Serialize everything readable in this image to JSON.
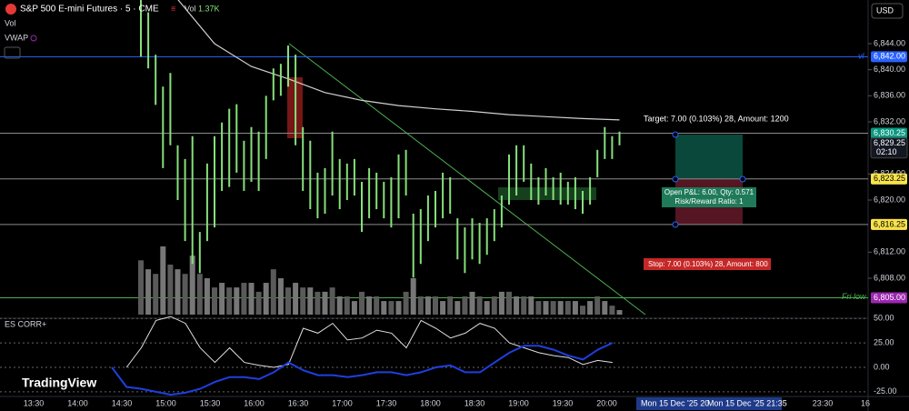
{
  "header": {
    "symbol": "S&P 500 E-mini Futures · 5 · CME",
    "vol_label": "Vol",
    "vol_value": "1.37K",
    "vwap_label": "VWAP",
    "currency": "USD"
  },
  "price_axis": {
    "ylim": [
      6802,
      6852
    ],
    "yticks": [
      {
        "value": 6844,
        "label": "6,844.00"
      },
      {
        "value": 6840,
        "label": "6,840.00"
      },
      {
        "value": 6836,
        "label": "6,836.00"
      },
      {
        "value": 6832,
        "label": "6,832.00"
      },
      {
        "value": 6824,
        "label": "6,824.00"
      },
      {
        "value": 6820,
        "label": "6,820.00"
      },
      {
        "value": 6812,
        "label": "6,812.00"
      },
      {
        "value": 6808,
        "label": "6,808.00"
      }
    ]
  },
  "price_labels": [
    {
      "value": 6842,
      "label": "6,842.00",
      "color": "#2962ff"
    },
    {
      "value": 6830.25,
      "label": "6,830.25",
      "color": "#089981"
    },
    {
      "value": 6823.25,
      "label": "6,823.25",
      "color": "#787b86"
    },
    {
      "value": 6816.25,
      "label": "6,816.25",
      "color": "#f23645"
    },
    {
      "value": 6805,
      "label": "6,805.00",
      "color": "#4caf50"
    }
  ],
  "last_price": {
    "value": 6829.25,
    "label": "6,829.25",
    "countdown": "02:10"
  },
  "alt_labels": [
    {
      "value": 6823.25,
      "label": "6,823.25",
      "color": "#f7e34a"
    },
    {
      "value": 6816.25,
      "label": "6,816.25",
      "color": "#f7e34a"
    },
    {
      "value": 6805,
      "label": "6,805.00",
      "color": "#9c27b0"
    }
  ],
  "line_notes": {
    "vl": "vl",
    "fri_low": "Fri low"
  },
  "price_bars": {
    "color": "#86e07a",
    "highs": [
      6850.7,
      6848.8,
      6842.3,
      6837.4,
      6839.5,
      6828.4,
      6826.3,
      6829.8,
      6815.1,
      6825.6,
      6829.8,
      6831.9,
      6834,
      6834.7,
      6829.1,
      6831.2,
      6830.5,
      6836,
      6840.2,
      6840.9,
      6843.7,
      6842.3,
      6831.2,
      6829.1,
      6824.2,
      6824.9,
      6830.5,
      6826.3,
      6825.6,
      6826.3,
      6822.8,
      6824.9,
      6824.2,
      6822.8,
      6823.5,
      6827,
      6827.7,
      6817.9,
      6818.6,
      6820.7,
      6821.4,
      6824.2,
      6823.5,
      6817.2,
      6815.8,
      6817.2,
      6816.5,
      6817.2,
      6818.6,
      6820.7,
      6827,
      6828.4,
      6828.4,
      6825.6,
      6823.5,
      6824.9,
      6823.5,
      6824.2,
      6822.8,
      6823.5,
      6821.4,
      6823.5,
      6827.7,
      6831.2,
      6829.8,
      6830.5
    ],
    "lows": [
      6842,
      6840.2,
      6834.6,
      6824.9,
      6828.4,
      6820,
      6813.7,
      6810.2,
      6808.8,
      6813.7,
      6815.8,
      6821.4,
      6822,
      6824.2,
      6821.4,
      6822.8,
      6821.4,
      6826.3,
      6835.3,
      6836,
      6837.4,
      6828.4,
      6821.4,
      6818.6,
      6817.2,
      6817.9,
      6820.7,
      6818.6,
      6820,
      6820.7,
      6815.1,
      6817.2,
      6818.6,
      6817.2,
      6815.8,
      6817.2,
      6820.7,
      6808.1,
      6810.2,
      6813.7,
      6815.8,
      6817.2,
      6817.9,
      6810.9,
      6808.8,
      6810.9,
      6810.2,
      6811.6,
      6813.7,
      6815.8,
      6819.3,
      6820.7,
      6822.8,
      6820,
      6819.3,
      6820.7,
      6820,
      6819.3,
      6819.3,
      6818.6,
      6817.9,
      6819.3,
      6823.5,
      6826.3,
      6826.3,
      6828.4
    ]
  },
  "volume": {
    "color": "#5a5a5a",
    "values": [
      16.4,
      13.7,
      12.3,
      20.6,
      15.1,
      13.7,
      12.3,
      17.8,
      12.3,
      11,
      8.2,
      9.6,
      8.2,
      8.2,
      9.6,
      9.6,
      6.9,
      9.6,
      13.7,
      11,
      8.2,
      9.6,
      8.2,
      8.2,
      6.9,
      6.9,
      8.2,
      5.5,
      5.5,
      4.1,
      6.9,
      5.5,
      5.5,
      4.1,
      4.1,
      4.1,
      6.9,
      11,
      5.5,
      5.5,
      5.5,
      4.1,
      5.5,
      4.1,
      5.5,
      6.9,
      5.5,
      4.1,
      5.5,
      6.9,
      6.9,
      5.5,
      5.5,
      5.5,
      4.1,
      4.1,
      4.1,
      4.1,
      4.1,
      4.1,
      2.7,
      4.1,
      5.5,
      4.1,
      2.7,
      1.37
    ]
  },
  "vwap": {
    "color": "#d0d0d0",
    "values": [
      null,
      6850.8,
      6844,
      6840.5,
      6838.6,
      6836.5,
      6835.3,
      6834.5,
      6834,
      6833.6,
      6833.1,
      6832.8,
      6832.5,
      6832.3
    ]
  },
  "indicator": {
    "title": "ES CORR+",
    "ylim": [
      -27,
      53
    ],
    "yticks": [
      {
        "value": 50,
        "label": "50.00"
      },
      {
        "value": 25,
        "label": "25.00"
      },
      {
        "value": 0,
        "label": "0.00"
      },
      {
        "value": -25,
        "label": "-25.00"
      }
    ],
    "series": [
      {
        "color": "#e0e0e0",
        "values": [
          null,
          0,
          20,
          48,
          52,
          45,
          20,
          5,
          20,
          5,
          2,
          0,
          3,
          40,
          35,
          45,
          28,
          30,
          38,
          35,
          20,
          48,
          40,
          30,
          35,
          45,
          40,
          25,
          20,
          15,
          12,
          10,
          3,
          7,
          5
        ]
      },
      {
        "color": "#1f3fe0",
        "values": [
          0,
          -20,
          -22,
          -25,
          -28,
          -26,
          -22,
          -15,
          -10,
          -10,
          -12,
          -5,
          5,
          -3,
          -8,
          -8,
          -10,
          -8,
          -5,
          -5,
          -8,
          -5,
          0,
          2,
          -5,
          -5,
          5,
          15,
          22,
          22,
          18,
          12,
          8,
          18,
          25
        ]
      }
    ]
  },
  "position": {
    "target": "Target: 7.00 (0.103%) 28, Amount: 1200",
    "pnl": "Open P&L: 6.00, Qty: 0.571",
    "rr": "Risk/Reward Ratio: 1",
    "stop": "Stop: 7.00 (0.103%) 28, Amount: 800"
  },
  "time_axis": {
    "labels": [
      "13:30",
      "14:00",
      "14:30",
      "15:00",
      "15:30",
      "16:00",
      "16:30",
      "17:00",
      "17:30",
      "18:00",
      "18:30",
      "19:00",
      "19:30",
      "20:00"
    ],
    "cross_start": "Mon 15 Dec '25  20",
    "cross_end": "Mon 15 Dec '25  21:35",
    "tail": [
      "23:30",
      "16"
    ]
  },
  "logo": "TradingView"
}
